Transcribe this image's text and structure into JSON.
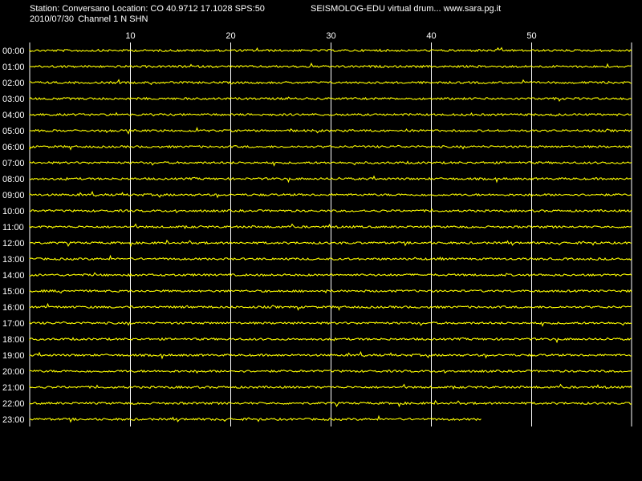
{
  "header": {
    "station_line": "Station: Conversano Location: CO 40.9712 17.1028 SPS:50",
    "date": "2010/07/30",
    "channel": "Channel 1 N SHN",
    "brand": "SEISMOLOG-EDU virtual drum... www.sara.pg.it"
  },
  "colors": {
    "background": "#000000",
    "trace": "#ffff00",
    "grid": "#ffffff",
    "text": "#ffffff"
  },
  "chart_data": {
    "type": "line",
    "title": "",
    "xlabel": "",
    "ylabel": "",
    "xlim": [
      0,
      60
    ],
    "x_unit": "minutes",
    "x_ticks": [
      "10",
      "20",
      "30",
      "40",
      "50"
    ],
    "grid": true,
    "rows": [
      {
        "hour": "00:00",
        "end_minute": 60
      },
      {
        "hour": "01:00",
        "end_minute": 60
      },
      {
        "hour": "02:00",
        "end_minute": 60
      },
      {
        "hour": "03:00",
        "end_minute": 60
      },
      {
        "hour": "04:00",
        "end_minute": 60
      },
      {
        "hour": "05:00",
        "end_minute": 60
      },
      {
        "hour": "06:00",
        "end_minute": 60
      },
      {
        "hour": "07:00",
        "end_minute": 60
      },
      {
        "hour": "08:00",
        "end_minute": 60
      },
      {
        "hour": "09:00",
        "end_minute": 60
      },
      {
        "hour": "10:00",
        "end_minute": 60
      },
      {
        "hour": "11:00",
        "end_minute": 60
      },
      {
        "hour": "12:00",
        "end_minute": 60
      },
      {
        "hour": "13:00",
        "end_minute": 60
      },
      {
        "hour": "14:00",
        "end_minute": 60
      },
      {
        "hour": "15:00",
        "end_minute": 60
      },
      {
        "hour": "16:00",
        "end_minute": 60
      },
      {
        "hour": "17:00",
        "end_minute": 60
      },
      {
        "hour": "18:00",
        "end_minute": 60
      },
      {
        "hour": "19:00",
        "end_minute": 60
      },
      {
        "hour": "20:00",
        "end_minute": 60
      },
      {
        "hour": "21:00",
        "end_minute": 60
      },
      {
        "hour": "22:00",
        "end_minute": 60
      },
      {
        "hour": "23:00",
        "end_minute": 45
      }
    ]
  }
}
